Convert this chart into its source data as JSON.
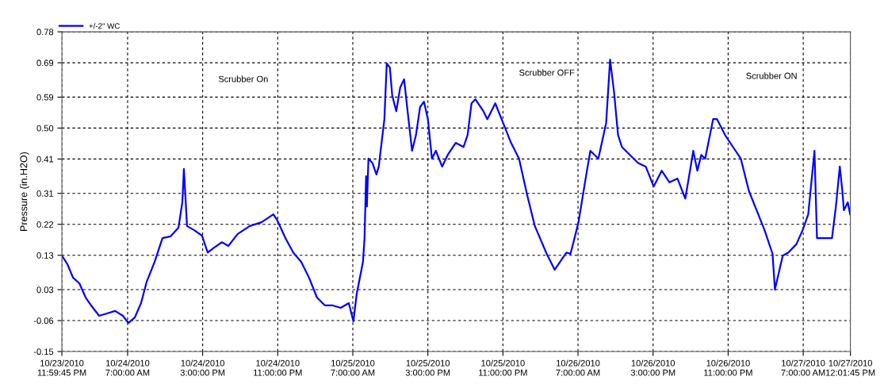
{
  "chart_data": {
    "type": "line",
    "ylabel": "Pressure (in.H2O)",
    "x": [
      "2010-10-24T00:00",
      "2010-10-24T00:35",
      "2010-10-24T01:11",
      "2010-10-24T01:52",
      "2010-10-24T02:32",
      "2010-10-24T03:07",
      "2010-10-24T03:58",
      "2010-10-24T04:49",
      "2010-10-24T05:40",
      "2010-10-24T06:30",
      "2010-10-24T07:05",
      "2010-10-24T07:46",
      "2010-10-24T08:26",
      "2010-10-24T09:02",
      "2010-10-24T09:53",
      "2010-10-24T10:43",
      "2010-10-24T11:34",
      "2010-10-24T12:25",
      "2010-10-24T12:50",
      "2010-10-24T13:00",
      "2010-10-24T13:20",
      "2010-10-24T14:06",
      "2010-10-24T14:56",
      "2010-10-24T15:32",
      "2010-10-24T16:13",
      "2010-10-24T17:03",
      "2010-10-24T17:44",
      "2010-10-24T18:44",
      "2010-10-24T20:01",
      "2010-10-24T21:16",
      "2010-10-24T22:32",
      "2010-10-24T22:58",
      "2010-10-24T23:49",
      "2010-10-25T00:39",
      "2010-10-25T01:30",
      "2010-10-25T02:20",
      "2010-10-25T03:11",
      "2010-10-25T04:02",
      "2010-10-25T04:52",
      "2010-10-25T05:43",
      "2010-10-25T06:34",
      "2010-10-25T07:04",
      "2010-10-25T07:25",
      "2010-10-25T08:05",
      "2010-10-25T08:15",
      "2010-10-25T08:25",
      "2010-10-25T08:30",
      "2010-10-25T08:40",
      "2010-10-25T09:05",
      "2010-10-25T09:31",
      "2010-10-25T09:46",
      "2010-10-25T10:22",
      "2010-10-25T10:37",
      "2010-10-25T10:57",
      "2010-10-25T11:12",
      "2010-10-25T11:38",
      "2010-10-25T12:03",
      "2010-10-25T12:28",
      "2010-10-25T12:53",
      "2010-10-25T13:19",
      "2010-10-25T13:44",
      "2010-10-25T14:10",
      "2010-10-25T14:35",
      "2010-10-25T15:00",
      "2010-10-25T15:26",
      "2010-10-25T15:51",
      "2010-10-25T16:31",
      "2010-10-25T17:07",
      "2010-10-25T17:58",
      "2010-10-25T18:48",
      "2010-10-25T19:14",
      "2010-10-25T19:39",
      "2010-10-25T20:04",
      "2010-10-25T20:55",
      "2010-10-25T21:20",
      "2010-10-25T22:11",
      "2010-10-25T23:01",
      "2010-10-25T23:52",
      "2010-10-26T00:43",
      "2010-10-26T01:34",
      "2010-10-26T02:24",
      "2010-10-26T03:40",
      "2010-10-26T04:31",
      "2010-10-26T05:22",
      "2010-10-26T05:47",
      "2010-10-26T06:12",
      "2010-10-26T07:03",
      "2010-10-26T07:53",
      "2010-10-26T08:19",
      "2010-10-26T09:10",
      "2010-10-26T10:00",
      "2010-10-26T10:25",
      "2010-10-26T10:50",
      "2010-10-26T11:16",
      "2010-10-26T11:41",
      "2010-10-26T12:32",
      "2010-10-26T13:23",
      "2010-10-26T14:13",
      "2010-10-26T15:04",
      "2010-10-26T15:55",
      "2010-10-26T16:45",
      "2010-10-26T17:36",
      "2010-10-26T18:26",
      "2010-10-26T18:52",
      "2010-10-26T19:17",
      "2010-10-26T19:43",
      "2010-10-26T20:08",
      "2010-10-26T20:33",
      "2010-10-26T21:24",
      "2010-10-26T21:49",
      "2010-10-26T22:40",
      "2010-10-26T23:31",
      "2010-10-27T00:21",
      "2010-10-27T01:12",
      "2010-10-27T02:02",
      "2010-10-27T02:53",
      "2010-10-27T03:44",
      "2010-10-27T03:59",
      "2010-10-27T04:49",
      "2010-10-27T05:25",
      "2010-10-27T06:16",
      "2010-10-27T06:56",
      "2010-10-27T07:32",
      "2010-10-27T08:12",
      "2010-10-27T08:28",
      "2010-10-27T08:47",
      "2010-10-27T09:38",
      "2010-10-27T10:04",
      "2010-10-27T10:29",
      "2010-10-27T10:54",
      "2010-10-27T11:10",
      "2010-10-27T11:20",
      "2010-10-27T11:45",
      "2010-10-27T12:00"
    ],
    "series": [
      {
        "name": "+/-2\" WC",
        "color": "#0000ff",
        "values": [
          0.129,
          0.104,
          0.065,
          0.048,
          0.007,
          -0.016,
          -0.046,
          -0.039,
          -0.032,
          -0.046,
          -0.067,
          -0.051,
          -0.009,
          0.053,
          0.111,
          0.18,
          0.185,
          0.21,
          0.284,
          0.381,
          0.215,
          0.203,
          0.187,
          0.138,
          0.152,
          0.168,
          0.157,
          0.192,
          0.215,
          0.226,
          0.249,
          0.231,
          0.18,
          0.138,
          0.111,
          0.065,
          0.007,
          -0.016,
          -0.016,
          -0.023,
          -0.009,
          -0.062,
          0.018,
          0.111,
          0.18,
          0.36,
          0.272,
          0.411,
          0.399,
          0.365,
          0.388,
          0.526,
          0.688,
          0.676,
          0.595,
          0.549,
          0.618,
          0.642,
          0.538,
          0.434,
          0.48,
          0.561,
          0.577,
          0.526,
          0.411,
          0.434,
          0.388,
          0.422,
          0.457,
          0.445,
          0.48,
          0.572,
          0.584,
          0.549,
          0.526,
          0.572,
          0.515,
          0.457,
          0.411,
          0.307,
          0.215,
          0.134,
          0.088,
          0.122,
          0.138,
          0.134,
          0.226,
          0.365,
          0.434,
          0.411,
          0.515,
          0.699,
          0.607,
          0.48,
          0.445,
          0.422,
          0.399,
          0.388,
          0.33,
          0.376,
          0.342,
          0.353,
          0.295,
          0.365,
          0.434,
          0.376,
          0.422,
          0.411,
          0.526,
          0.526,
          0.48,
          0.445,
          0.411,
          0.318,
          0.261,
          0.203,
          0.134,
          0.03,
          0.129,
          0.138,
          0.162,
          0.203,
          0.249,
          0.434,
          0.18,
          0.18,
          0.18,
          0.18,
          0.272,
          0.388,
          0.318,
          0.261,
          0.284,
          0.249
        ]
      }
    ],
    "xlim": [
      "2010-10-23T23:59:45",
      "2010-10-27T12:01:45"
    ],
    "xticks": [
      {
        "value": "2010-10-23T23:59:45",
        "label": "10/23/2010\n11:59:45 PM"
      },
      {
        "value": "2010-10-24T07:00",
        "label": "10/24/2010\n7:00:00 AM"
      },
      {
        "value": "2010-10-24T15:00",
        "label": "10/24/2010\n3:00:00 PM"
      },
      {
        "value": "2010-10-24T23:00",
        "label": "10/24/2010\n11:00:00 PM"
      },
      {
        "value": "2010-10-25T07:00",
        "label": "10/25/2010\n7:00:00 AM"
      },
      {
        "value": "2010-10-25T15:00",
        "label": "10/25/2010\n3:00:00 PM"
      },
      {
        "value": "2010-10-25T23:00",
        "label": "10/25/2010\n11:00:00 PM"
      },
      {
        "value": "2010-10-26T07:00",
        "label": "10/26/2010\n7:00:00 AM"
      },
      {
        "value": "2010-10-26T15:00",
        "label": "10/26/2010\n3:00:00 PM"
      },
      {
        "value": "2010-10-26T23:00",
        "label": "10/26/2010\n11:00:00 PM"
      },
      {
        "value": "2010-10-27T07:00",
        "label": "10/27/2010\n7:00:00 AM"
      },
      {
        "value": "2010-10-27T12:01:45",
        "label": "10/27/2010\n12:01:45 PM"
      }
    ],
    "ylim": [
      -0.15,
      0.78
    ],
    "yticks": [
      -0.15,
      -0.06,
      0.03,
      0.13,
      0.22,
      0.31,
      0.41,
      {
        "value": 0.5,
        "label": "0.50"
      },
      0.59,
      0.69,
      0.78
    ],
    "annotations": [
      "Scrubber On",
      "Scrubber OFF",
      "Scrubber ON"
    ],
    "grid": true,
    "legend": "top left",
    "line_style": "solid",
    "marker": "none"
  }
}
